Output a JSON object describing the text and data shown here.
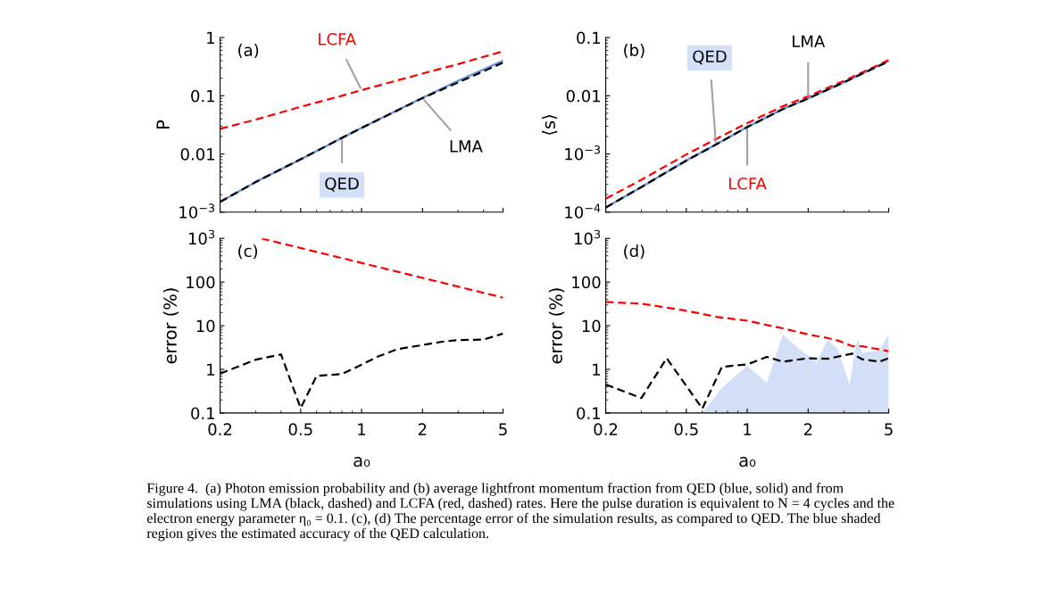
{
  "chart_data": [
    {
      "type": "line",
      "ylabel": "P",
      "log": "xy",
      "tick_labels": "y",
      "x": [
        0.2,
        0.3,
        0.5,
        0.8,
        1,
        2,
        3,
        5
      ],
      "xlim": [
        0.2,
        5
      ],
      "xticks": [
        0.2,
        0.5,
        1,
        2,
        5
      ],
      "ylim": [
        0.001,
        1
      ],
      "yticks": [
        {
          "value": 0.001,
          "label": "10$^{−3}$"
        },
        0.01,
        0.1,
        1
      ],
      "annotations": [
        "(a)"
      ],
      "series": [
        {
          "name": "LCFA",
          "color": "#ff0000",
          "line_style": "dashed",
          "values": [
            0.027,
            0.039,
            0.0645,
            0.1,
            0.125,
            0.24,
            0.35,
            0.58
          ]
        },
        {
          "name": "QED",
          "color": "#6f97e0",
          "line_style": "solid",
          "values": [
            0.0015,
            0.0033,
            0.0081,
            0.0189,
            0.028,
            0.092,
            0.18,
            0.4
          ]
        },
        {
          "name": "LMA",
          "color": "#000000",
          "line_style": "dashed",
          "values": [
            0.0015,
            0.0033,
            0.0081,
            0.0189,
            0.028,
            0.091,
            0.17,
            0.37
          ]
        }
      ]
    },
    {
      "type": "line",
      "ylabel": "⟨s⟩",
      "log": "xy",
      "tick_labels": "y",
      "x": [
        0.2,
        0.3,
        0.5,
        0.7,
        1,
        1.5,
        2,
        3,
        5
      ],
      "xlim": [
        0.2,
        5
      ],
      "xticks": [
        0.2,
        0.5,
        1,
        2,
        5
      ],
      "ylim": [
        0.0001,
        0.1
      ],
      "yticks": [
        {
          "value": 0.0001,
          "label": "10$^{−4}$"
        },
        {
          "value": 0.001,
          "label": "10$^{−3}$"
        },
        0.01,
        0.1
      ],
      "annotations": [
        "(b)"
      ],
      "series": [
        {
          "name": "LCFA",
          "color": "#ff0000",
          "line_style": "dashed",
          "values": [
            0.00017,
            0.00036,
            0.00098,
            0.0018,
            0.0034,
            0.0066,
            0.0098,
            0.018,
            0.041
          ]
        },
        {
          "name": "QED",
          "color": "#6f97e0",
          "line_style": "solid",
          "values": [
            0.00012,
            0.00027,
            0.00077,
            0.00145,
            0.0029,
            0.0059,
            0.009,
            0.017,
            0.04
          ]
        },
        {
          "name": "LMA",
          "color": "#000000",
          "line_style": "dashed",
          "values": [
            0.00012,
            0.00027,
            0.00077,
            0.00145,
            0.0029,
            0.0059,
            0.009,
            0.017,
            0.039
          ]
        }
      ]
    },
    {
      "type": "line",
      "ylabel": "error (%)",
      "xlabel": "a₀",
      "log": "xy",
      "xlim": [
        0.2,
        5
      ],
      "xticks": [
        0.2,
        0.5,
        1,
        2,
        5
      ],
      "ylim": [
        0.1,
        1000
      ],
      "yticks": [
        0.1,
        1,
        10,
        100,
        {
          "value": 1000,
          "label": "10$^{3}$"
        }
      ],
      "annotations": [
        "(c)"
      ],
      "series": [
        {
          "color": "#ff0000",
          "line_style": "dashed",
          "x": [
            0.32,
            5
          ],
          "values": [
            1000,
            44
          ]
        },
        {
          "color": "#000000",
          "line_style": "dashed",
          "x": [
            0.2,
            0.3,
            0.4,
            0.5,
            0.6,
            0.8,
            1,
            1.2,
            1.5,
            2,
            2.5,
            3,
            4,
            5
          ],
          "values": [
            0.8,
            1.67,
            2.2,
            0.13,
            0.71,
            0.78,
            1.28,
            1.95,
            2.9,
            3.6,
            4.3,
            4.7,
            4.8,
            6.6
          ]
        }
      ]
    },
    {
      "type": "line",
      "ylabel": "error (%)",
      "xlabel": "a₀",
      "log": "xy",
      "xlim": [
        0.2,
        5
      ],
      "xticks": [
        0.2,
        0.5,
        1,
        2,
        5
      ],
      "ylim": [
        0.1,
        1000
      ],
      "yticks": [
        0.1,
        1,
        10,
        100,
        {
          "value": 1000,
          "label": "10$^{3}$"
        }
      ],
      "annotations": [
        "(d)",
        "Figure 4.  (a) Photon emission probability and (b) average lightfront momentum fraction from QED (blue, solid) and from simulations using LMA (black, dashed) and LCFA (red, dashed) rates. Here the pulse duration is equivalent to N = 4 cycles and the electron energy parameter η₀ = 0.1. (c), (d) The percentage error of the simulation results, as compared to QED. The blue shaded region gives the estimated accuracy of the QED calculation."
      ],
      "series": [
        {
          "type": "area",
          "color": "#d3dff7",
          "x": [
            0.6,
            0.75,
            1.0,
            1.25,
            1.5,
            1.8,
            2.2,
            2.5,
            2.8,
            3.2,
            3.5,
            3.7,
            4.5,
            5
          ],
          "values": [
            0.1,
            0.38,
            1.2,
            0.5,
            6.3,
            3.0,
            1.5,
            4.7,
            3.0,
            0.45,
            5.0,
            2.4,
            2.7,
            6.5
          ]
        },
        {
          "color": "#ff0000",
          "line_style": "dashed",
          "x": [
            0.2,
            0.3,
            0.4,
            0.5,
            0.7,
            1,
            1.3,
            1.5,
            2,
            2.5,
            2.8,
            3.3,
            3.7,
            5
          ],
          "values": [
            35,
            32,
            26,
            22,
            16,
            13,
            10,
            8.7,
            6.3,
            5.2,
            4.6,
            3.4,
            3.4,
            2.6
          ]
        },
        {
          "color": "#000000",
          "line_style": "dashed",
          "x": [
            0.2,
            0.3,
            0.4,
            0.6,
            0.75,
            1.0,
            1.25,
            1.5,
            2,
            2.5,
            3.3,
            3.7,
            4.5,
            5
          ],
          "values": [
            0.45,
            0.22,
            1.8,
            0.126,
            1.14,
            1.3,
            1.93,
            1.5,
            1.8,
            1.75,
            2.3,
            1.7,
            1.5,
            1.8
          ]
        }
      ]
    }
  ]
}
